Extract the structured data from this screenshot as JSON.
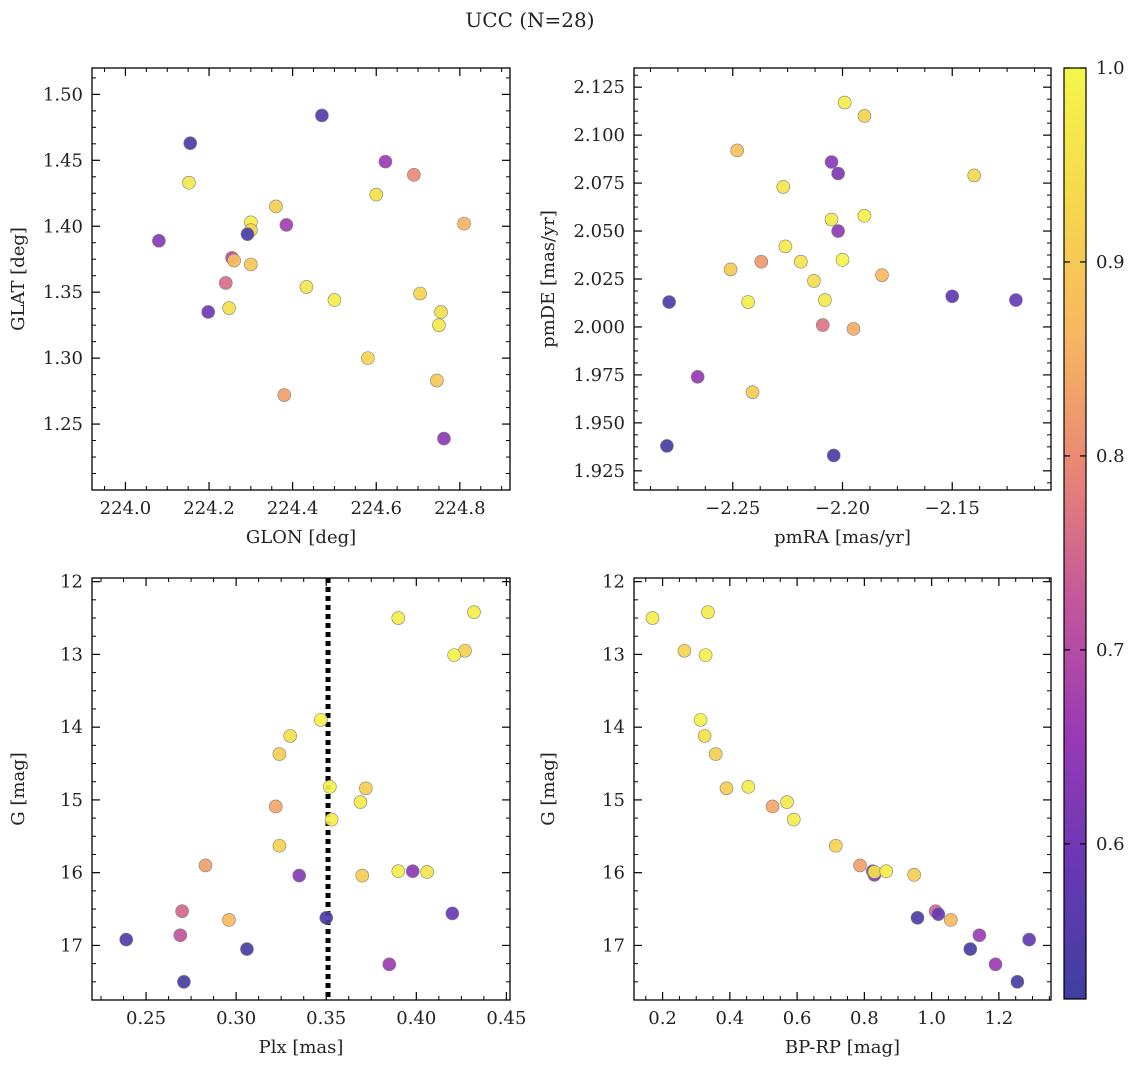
{
  "figure": {
    "title": "UCC (N=28)"
  },
  "colormap": {
    "name": "plasma",
    "range": [
      0.52,
      1.0
    ],
    "ticks": [
      "0.6",
      "0.7",
      "0.8",
      "0.9",
      "1.0"
    ],
    "stops": [
      "#3f3fa0",
      "#6838b5",
      "#9a3ab5",
      "#c4579a",
      "#e88775",
      "#f8b660",
      "#f5d84c",
      "#f4f64a"
    ]
  },
  "chart_data": [
    {
      "type": "scatter",
      "xlabel": "GLON [deg]",
      "ylabel": "GLAT [deg]",
      "xlim": [
        223.92,
        224.92
      ],
      "ylim": [
        1.2,
        1.52
      ],
      "xticks": [
        224.0,
        224.2,
        224.4,
        224.6,
        224.8
      ],
      "yticks": [
        1.25,
        1.3,
        1.35,
        1.4,
        1.45,
        1.5
      ],
      "points": [
        {
          "x": 224.155,
          "y": 1.463,
          "c": 0.54
        },
        {
          "x": 224.47,
          "y": 1.484,
          "c": 0.56
        },
        {
          "x": 224.152,
          "y": 1.433,
          "c": 0.97
        },
        {
          "x": 224.08,
          "y": 1.389,
          "c": 0.63
        },
        {
          "x": 224.622,
          "y": 1.449,
          "c": 0.66
        },
        {
          "x": 224.69,
          "y": 1.439,
          "c": 0.8
        },
        {
          "x": 224.6,
          "y": 1.424,
          "c": 0.95
        },
        {
          "x": 224.36,
          "y": 1.415,
          "c": 0.91
        },
        {
          "x": 224.3,
          "y": 1.403,
          "c": 0.98
        },
        {
          "x": 224.3,
          "y": 1.397,
          "c": 0.93
        },
        {
          "x": 224.292,
          "y": 1.394,
          "c": 0.54
        },
        {
          "x": 224.385,
          "y": 1.401,
          "c": 0.67
        },
        {
          "x": 224.81,
          "y": 1.402,
          "c": 0.86
        },
        {
          "x": 224.255,
          "y": 1.376,
          "c": 0.71
        },
        {
          "x": 224.26,
          "y": 1.374,
          "c": 0.88
        },
        {
          "x": 224.3,
          "y": 1.371,
          "c": 0.9
        },
        {
          "x": 224.24,
          "y": 1.357,
          "c": 0.76
        },
        {
          "x": 224.433,
          "y": 1.354,
          "c": 0.96
        },
        {
          "x": 224.705,
          "y": 1.349,
          "c": 0.92
        },
        {
          "x": 224.5,
          "y": 1.344,
          "c": 0.98
        },
        {
          "x": 224.248,
          "y": 1.338,
          "c": 0.95
        },
        {
          "x": 224.198,
          "y": 1.335,
          "c": 0.6
        },
        {
          "x": 224.755,
          "y": 1.335,
          "c": 0.95
        },
        {
          "x": 224.75,
          "y": 1.325,
          "c": 0.97
        },
        {
          "x": 224.58,
          "y": 1.3,
          "c": 0.92
        },
        {
          "x": 224.745,
          "y": 1.283,
          "c": 0.9
        },
        {
          "x": 224.38,
          "y": 1.272,
          "c": 0.83
        },
        {
          "x": 224.762,
          "y": 1.239,
          "c": 0.64
        }
      ]
    },
    {
      "type": "scatter",
      "xlabel": "pmRA [mas/yr]",
      "ylabel": "pmDE [mas/yr]",
      "xlim": [
        -2.295,
        -2.105
      ],
      "ylim": [
        1.915,
        2.135
      ],
      "xticks": [
        -2.25,
        -2.2,
        -2.15
      ],
      "yticks": [
        1.925,
        1.95,
        1.975,
        2.0,
        2.025,
        2.05,
        2.075,
        2.1,
        2.125
      ],
      "points": [
        {
          "x": -2.199,
          "y": 2.117,
          "c": 0.98
        },
        {
          "x": -2.19,
          "y": 2.11,
          "c": 0.92
        },
        {
          "x": -2.248,
          "y": 2.092,
          "c": 0.88
        },
        {
          "x": -2.205,
          "y": 2.086,
          "c": 0.64
        },
        {
          "x": -2.202,
          "y": 2.08,
          "c": 0.62
        },
        {
          "x": -2.14,
          "y": 2.079,
          "c": 0.93
        },
        {
          "x": -2.227,
          "y": 2.073,
          "c": 0.96
        },
        {
          "x": -2.19,
          "y": 2.058,
          "c": 0.99
        },
        {
          "x": -2.205,
          "y": 2.056,
          "c": 0.97
        },
        {
          "x": -2.202,
          "y": 2.05,
          "c": 0.64
        },
        {
          "x": -2.226,
          "y": 2.042,
          "c": 0.97
        },
        {
          "x": -2.2,
          "y": 2.035,
          "c": 0.99
        },
        {
          "x": -2.219,
          "y": 2.034,
          "c": 0.96
        },
        {
          "x": -2.237,
          "y": 2.034,
          "c": 0.82
        },
        {
          "x": -2.251,
          "y": 2.03,
          "c": 0.9
        },
        {
          "x": -2.182,
          "y": 2.027,
          "c": 0.87
        },
        {
          "x": -2.213,
          "y": 2.024,
          "c": 0.94
        },
        {
          "x": -2.15,
          "y": 2.016,
          "c": 0.57
        },
        {
          "x": -2.208,
          "y": 2.014,
          "c": 0.97
        },
        {
          "x": -2.243,
          "y": 2.013,
          "c": 0.98
        },
        {
          "x": -2.279,
          "y": 2.013,
          "c": 0.54
        },
        {
          "x": -2.121,
          "y": 2.014,
          "c": 0.59
        },
        {
          "x": -2.209,
          "y": 2.001,
          "c": 0.77
        },
        {
          "x": -2.195,
          "y": 1.999,
          "c": 0.85
        },
        {
          "x": -2.266,
          "y": 1.974,
          "c": 0.65
        },
        {
          "x": -2.241,
          "y": 1.966,
          "c": 0.91
        },
        {
          "x": -2.28,
          "y": 1.938,
          "c": 0.53
        },
        {
          "x": -2.204,
          "y": 1.933,
          "c": 0.54
        }
      ]
    },
    {
      "type": "scatter",
      "xlabel": "Plx [mas]",
      "ylabel": "G [mag]",
      "xlim": [
        0.22,
        0.452
      ],
      "ylim": [
        17.75,
        11.95
      ],
      "y_inverted": true,
      "xticks": [
        0.25,
        0.3,
        0.35,
        0.4,
        0.45
      ],
      "yticks": [
        12,
        13,
        14,
        15,
        16,
        17
      ],
      "vline": 0.351,
      "points": [
        {
          "x": 0.432,
          "y": 12.42,
          "c": 0.98
        },
        {
          "x": 0.39,
          "y": 12.5,
          "c": 0.98
        },
        {
          "x": 0.427,
          "y": 12.95,
          "c": 0.92
        },
        {
          "x": 0.421,
          "y": 13.01,
          "c": 0.99
        },
        {
          "x": 0.347,
          "y": 13.9,
          "c": 0.99
        },
        {
          "x": 0.33,
          "y": 14.12,
          "c": 0.95
        },
        {
          "x": 0.324,
          "y": 14.37,
          "c": 0.91
        },
        {
          "x": 0.352,
          "y": 14.82,
          "c": 0.99
        },
        {
          "x": 0.372,
          "y": 14.84,
          "c": 0.91
        },
        {
          "x": 0.369,
          "y": 15.03,
          "c": 0.97
        },
        {
          "x": 0.322,
          "y": 15.09,
          "c": 0.84
        },
        {
          "x": 0.353,
          "y": 15.27,
          "c": 0.98
        },
        {
          "x": 0.324,
          "y": 15.63,
          "c": 0.92
        },
        {
          "x": 0.283,
          "y": 15.9,
          "c": 0.83
        },
        {
          "x": 0.39,
          "y": 15.98,
          "c": 0.98
        },
        {
          "x": 0.398,
          "y": 15.98,
          "c": 0.64
        },
        {
          "x": 0.406,
          "y": 15.99,
          "c": 0.96
        },
        {
          "x": 0.37,
          "y": 16.04,
          "c": 0.91
        },
        {
          "x": 0.335,
          "y": 16.04,
          "c": 0.63
        },
        {
          "x": 0.27,
          "y": 16.53,
          "c": 0.75
        },
        {
          "x": 0.42,
          "y": 16.56,
          "c": 0.59
        },
        {
          "x": 0.35,
          "y": 16.62,
          "c": 0.54
        },
        {
          "x": 0.296,
          "y": 16.65,
          "c": 0.87
        },
        {
          "x": 0.269,
          "y": 16.86,
          "c": 0.72
        },
        {
          "x": 0.239,
          "y": 16.92,
          "c": 0.55
        },
        {
          "x": 0.306,
          "y": 17.05,
          "c": 0.53
        },
        {
          "x": 0.385,
          "y": 17.26,
          "c": 0.66
        },
        {
          "x": 0.271,
          "y": 17.5,
          "c": 0.53
        }
      ]
    },
    {
      "type": "scatter",
      "xlabel": "BP-RP [mag]",
      "ylabel": "G [mag]",
      "xlim": [
        0.115,
        1.355
      ],
      "ylim": [
        17.75,
        11.95
      ],
      "y_inverted": true,
      "xticks": [
        0.2,
        0.4,
        0.6,
        0.8,
        1.0,
        1.2
      ],
      "yticks": [
        12,
        13,
        14,
        15,
        16,
        17
      ],
      "points": [
        {
          "x": 0.17,
          "y": 12.5,
          "c": 0.98
        },
        {
          "x": 0.335,
          "y": 12.42,
          "c": 0.98
        },
        {
          "x": 0.265,
          "y": 12.95,
          "c": 0.92
        },
        {
          "x": 0.328,
          "y": 13.01,
          "c": 0.99
        },
        {
          "x": 0.313,
          "y": 13.9,
          "c": 0.99
        },
        {
          "x": 0.325,
          "y": 14.12,
          "c": 0.95
        },
        {
          "x": 0.358,
          "y": 14.37,
          "c": 0.91
        },
        {
          "x": 0.455,
          "y": 14.82,
          "c": 0.98
        },
        {
          "x": 0.39,
          "y": 14.84,
          "c": 0.91
        },
        {
          "x": 0.57,
          "y": 15.03,
          "c": 0.97
        },
        {
          "x": 0.527,
          "y": 15.09,
          "c": 0.84
        },
        {
          "x": 0.59,
          "y": 15.27,
          "c": 0.98
        },
        {
          "x": 0.715,
          "y": 15.63,
          "c": 0.92
        },
        {
          "x": 0.787,
          "y": 15.9,
          "c": 0.83
        },
        {
          "x": 0.825,
          "y": 15.98,
          "c": 0.64
        },
        {
          "x": 0.83,
          "y": 16.03,
          "c": 0.63
        },
        {
          "x": 0.83,
          "y": 15.99,
          "c": 0.96
        },
        {
          "x": 0.865,
          "y": 15.98,
          "c": 0.98
        },
        {
          "x": 0.948,
          "y": 16.03,
          "c": 0.91
        },
        {
          "x": 0.958,
          "y": 16.62,
          "c": 0.54
        },
        {
          "x": 1.012,
          "y": 16.53,
          "c": 0.75
        },
        {
          "x": 1.02,
          "y": 16.57,
          "c": 0.59
        },
        {
          "x": 1.057,
          "y": 16.65,
          "c": 0.87
        },
        {
          "x": 1.142,
          "y": 16.86,
          "c": 0.66
        },
        {
          "x": 1.29,
          "y": 16.92,
          "c": 0.58
        },
        {
          "x": 1.115,
          "y": 17.05,
          "c": 0.53
        },
        {
          "x": 1.19,
          "y": 17.26,
          "c": 0.66
        },
        {
          "x": 1.255,
          "y": 17.5,
          "c": 0.53
        }
      ]
    }
  ]
}
